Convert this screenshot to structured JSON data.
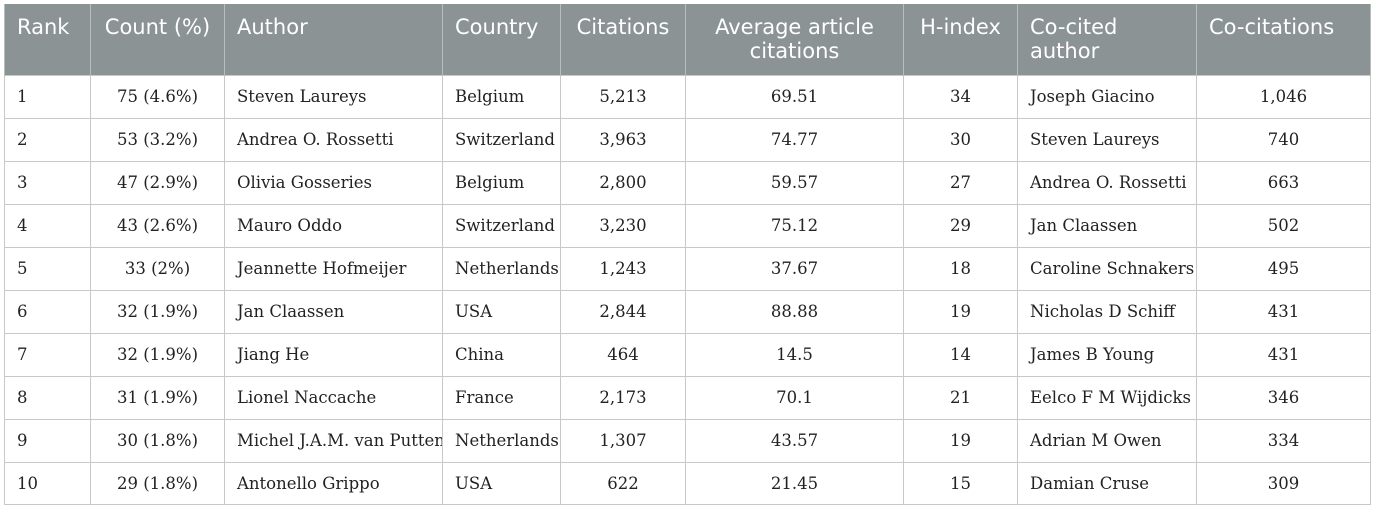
{
  "columns": [
    "Rank",
    "Count (%)",
    "Author",
    "Country",
    "Citations",
    "Average article citations",
    "H-index",
    "Co-cited author",
    "Co-citations"
  ],
  "rows": [
    [
      "1",
      "75 (4.6%)",
      "Steven Laureys",
      "Belgium",
      "5,213",
      "69.51",
      "34",
      "Joseph Giacino",
      "1,046"
    ],
    [
      "2",
      "53 (3.2%)",
      "Andrea O. Rossetti",
      "Switzerland",
      "3,963",
      "74.77",
      "30",
      "Steven Laureys",
      "740"
    ],
    [
      "3",
      "47 (2.9%)",
      "Olivia Gosseries",
      "Belgium",
      "2,800",
      "59.57",
      "27",
      "Andrea O. Rossetti",
      "663"
    ],
    [
      "4",
      "43 (2.6%)",
      "Mauro Oddo",
      "Switzerland",
      "3,230",
      "75.12",
      "29",
      "Jan Claassen",
      "502"
    ],
    [
      "5",
      "33 (2%)",
      "Jeannette Hofmeijer",
      "Netherlands",
      "1,243",
      "37.67",
      "18",
      "Caroline Schnakers",
      "495"
    ],
    [
      "6",
      "32 (1.9%)",
      "Jan Claassen",
      "USA",
      "2,844",
      "88.88",
      "19",
      "Nicholas D Schiff",
      "431"
    ],
    [
      "7",
      "32 (1.9%)",
      "Jiang He",
      "China",
      "464",
      "14.5",
      "14",
      "James B Young",
      "431"
    ],
    [
      "8",
      "31 (1.9%)",
      "Lionel Naccache",
      "France",
      "2,173",
      "70.1",
      "21",
      "Eelco F M Wijdicks",
      "346"
    ],
    [
      "9",
      "30 (1.8%)",
      "Michel J.A.M. van Putten",
      "Netherlands",
      "1,307",
      "43.57",
      "19",
      "Adrian M Owen",
      "334"
    ],
    [
      "10",
      "29 (1.8%)",
      "Antonello Grippo",
      "USA",
      "622",
      "21.45",
      "15",
      "Damian Cruse",
      "309"
    ]
  ],
  "colors": {
    "header_background": "#8c9395",
    "header_text": "#ffffff",
    "grid_line": "#c8c8c8"
  }
}
